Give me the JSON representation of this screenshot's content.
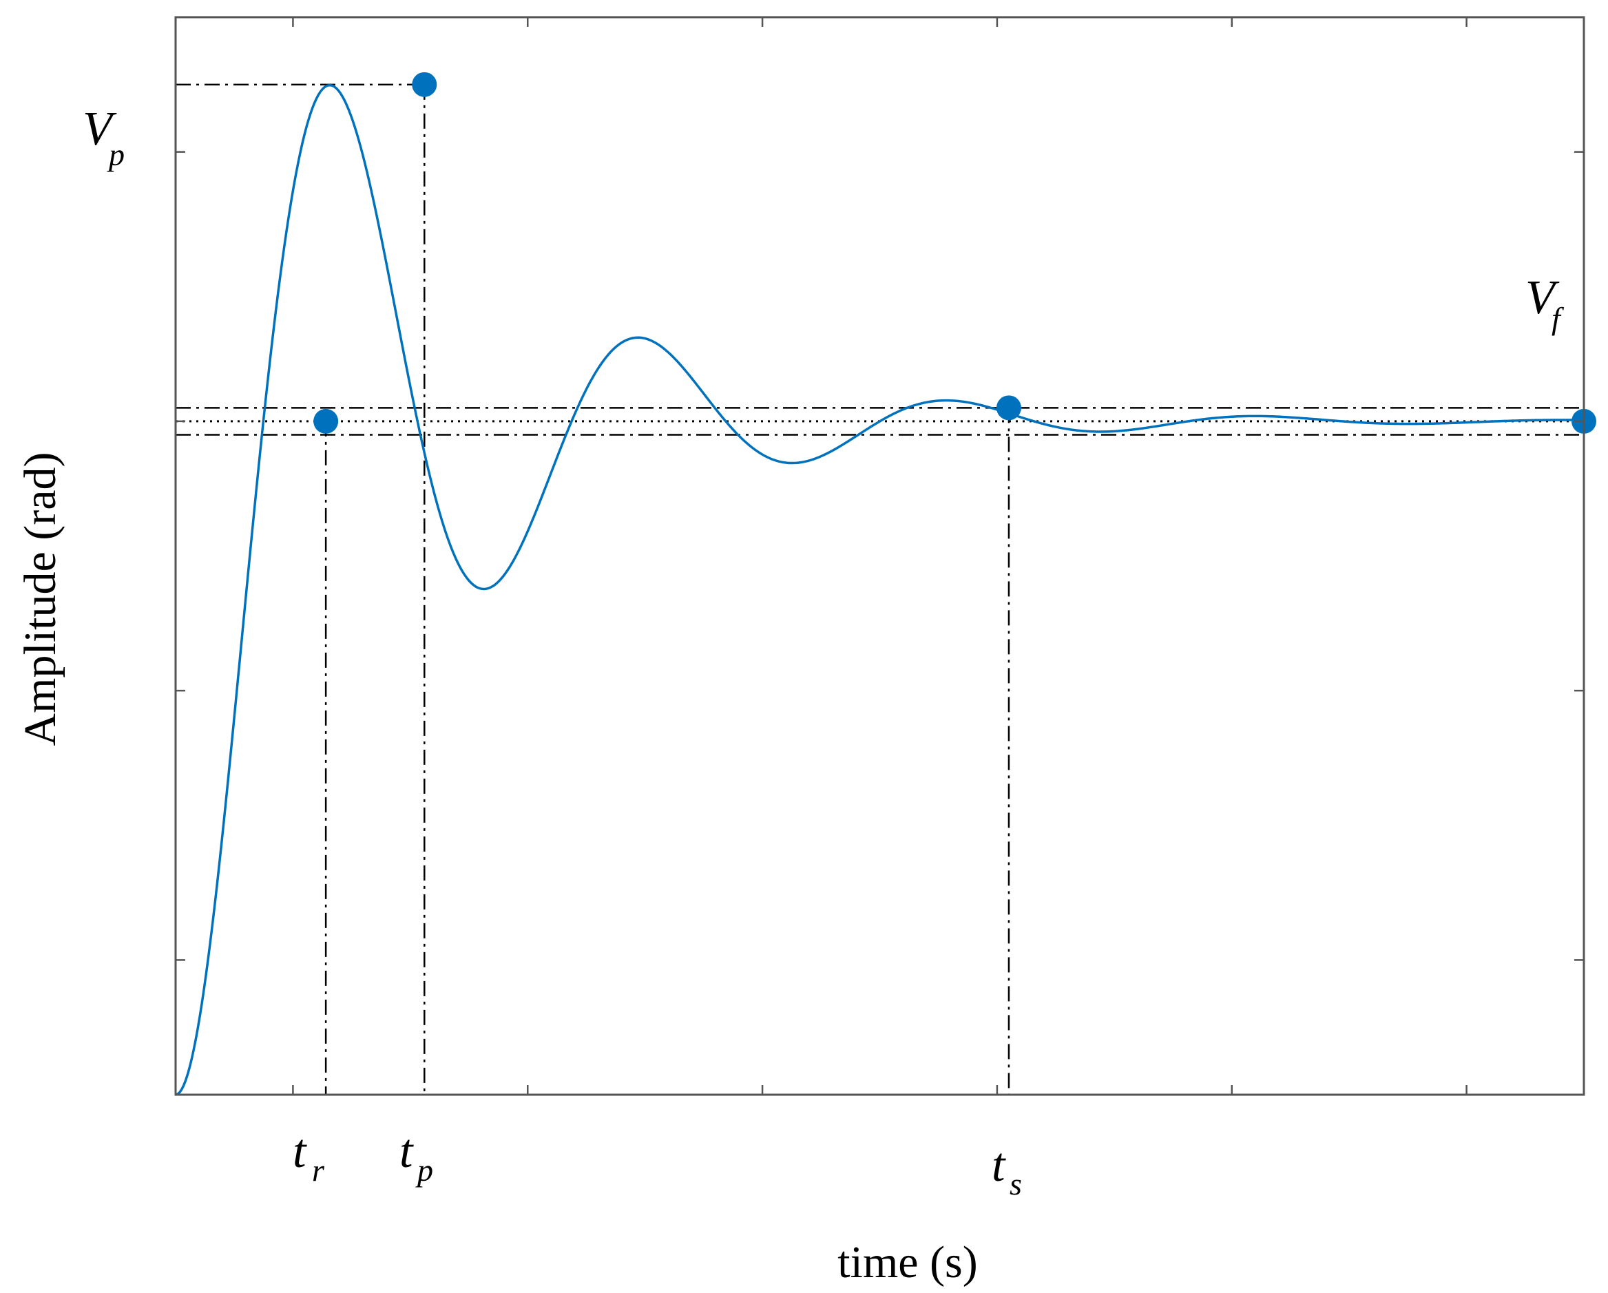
{
  "chart_data": {
    "type": "line",
    "title": "",
    "xlabel": "time (s)",
    "ylabel": "Amplitude (rad)",
    "xlim": [
      0,
      6
    ],
    "ylim": [
      0,
      1.6
    ],
    "grid": false,
    "tick_labels_shown": false,
    "colors": {
      "series": "#0072BD",
      "guides": "#000000",
      "axes": "#555555"
    },
    "step_response": {
      "final_value": 1.0,
      "zeta": 0.216,
      "wn": 4.9,
      "settling_band": [
        0.98,
        1.02
      ],
      "x_end": 6
    },
    "key_points": [
      {
        "name": "rise",
        "x": 0.64,
        "y": 1.0,
        "label": {
          "main": "t",
          "sub": "r"
        }
      },
      {
        "name": "peak",
        "x": 1.06,
        "y": 1.5,
        "label": {
          "main": "t",
          "sub": "p"
        }
      },
      {
        "name": "settle",
        "x": 3.55,
        "y": 1.02,
        "label": {
          "main": "t",
          "sub": "s"
        }
      },
      {
        "name": "final",
        "x": 6.0,
        "y": 1.0,
        "label": {
          "main": "",
          "sub": ""
        }
      }
    ],
    "annotations": {
      "peak_value": {
        "main": "V",
        "sub": "p"
      },
      "final_value": {
        "main": "V",
        "sub": "f"
      }
    }
  }
}
